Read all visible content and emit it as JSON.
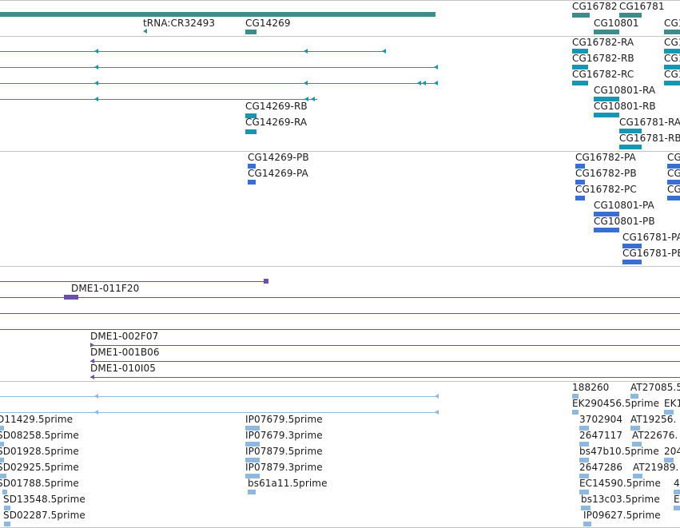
{
  "colors": {
    "gene": "#3c8c8c",
    "transcript": "#1796b4",
    "protein": "#3a6fd0",
    "clone": "#6b4fa8",
    "est": "#8fb9dc",
    "divider": "#c4c4c4"
  },
  "tracks": {
    "genes": [
      "tRNA:CR32493",
      "CG14269",
      "CG16782",
      "CG16781",
      "CG10801",
      "CG1"
    ],
    "transcripts": [
      "CG16782-RA",
      "CG16782-RB",
      "CG16782-RC",
      "CG10801-RA",
      "CG10801-RB",
      "CG16781-RA",
      "CG16781-RB",
      "CG14269-RB",
      "CG14269-RA",
      "CG1",
      "CG1",
      "CG1"
    ],
    "proteins": [
      "CG14269-PB",
      "CG14269-PA",
      "CG16782-PA",
      "CG16782-PB",
      "CG16782-PC",
      "CG10801-PA",
      "CG10801-PB",
      "CG16781-PA",
      "CG16781-PB",
      "CG",
      "CG",
      "CG"
    ],
    "clones": [
      "DME1-011F20",
      "DME1-002F07",
      "DME1-001B06",
      "DME1-010I05"
    ],
    "ests": [
      "188260",
      "AT27085.5",
      "EK290456.5prime",
      "EK1",
      "D11429.5prime",
      "IP07679.5prime",
      "3702904",
      "AT19256.",
      "SD08258.5prime",
      "IP07679.3prime",
      "2647117",
      "AT22676.",
      "SD01928.5prime",
      "IP07879.5prime",
      "bs47b10.5prime",
      "204",
      "SD02925.5prime",
      "IP07879.3prime",
      "2647286",
      "AT21989.",
      "SD01788.5prime",
      "bs61a11.5prime",
      "EC14590.5prime",
      "4",
      "SD13548.5prime",
      "bs13c03.5prime",
      "E",
      "SD02287.5prime",
      "IP09627.5prime"
    ]
  }
}
